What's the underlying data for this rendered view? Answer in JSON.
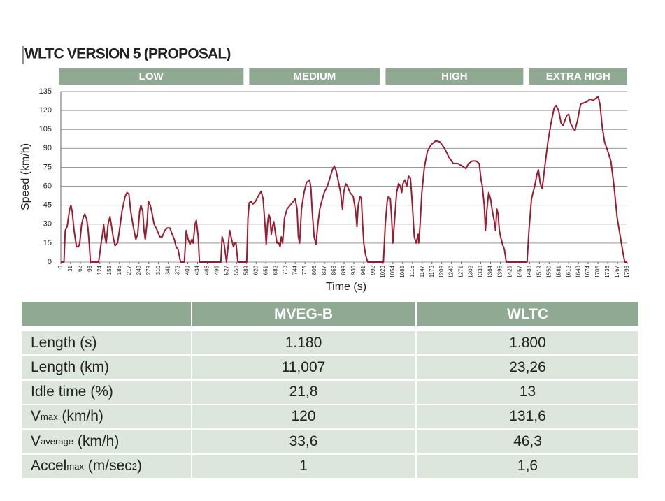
{
  "chart_data": {
    "type": "line",
    "title": "WLTC VERSION 5 (PROPOSAL)",
    "y_label": "Speed (km/h)",
    "x_label": "Time (s)",
    "phases": [
      {
        "label": "LOW",
        "start": 0,
        "end": 589
      },
      {
        "label": "MEDIUM",
        "start": 589,
        "end": 1022
      },
      {
        "label": "HIGH",
        "start": 1022,
        "end": 1477
      },
      {
        "label": "EXTRA HIGH",
        "start": 1477,
        "end": 1798
      }
    ],
    "phase_color": "#8fa993",
    "xlim": [
      0,
      1798
    ],
    "xticks": [
      0,
      31,
      62,
      93,
      124,
      155,
      186,
      217,
      248,
      279,
      310,
      341,
      372,
      403,
      434,
      465,
      496,
      527,
      558,
      589,
      620,
      651,
      682,
      713,
      744,
      775,
      806,
      837,
      868,
      899,
      930,
      961,
      992,
      1023,
      1054,
      1085,
      1116,
      1147,
      1178,
      1209,
      1240,
      1271,
      1302,
      1333,
      1364,
      1395,
      1426,
      1457,
      1488,
      1519,
      1550,
      1581,
      1612,
      1643,
      1674,
      1705,
      1736,
      1767,
      1798
    ],
    "ylim": [
      0,
      135
    ],
    "yticks": [
      0,
      15,
      30,
      45,
      60,
      75,
      90,
      105,
      120,
      135
    ],
    "grid": true,
    "x": [
      0,
      10,
      14,
      20,
      28,
      32,
      36,
      42,
      46,
      50,
      56,
      60,
      66,
      72,
      76,
      82,
      86,
      90,
      94,
      120,
      128,
      134,
      136,
      140,
      144,
      150,
      156,
      160,
      166,
      172,
      180,
      186,
      194,
      204,
      210,
      216,
      222,
      230,
      238,
      244,
      250,
      254,
      260,
      264,
      268,
      274,
      278,
      284,
      290,
      296,
      306,
      314,
      322,
      330,
      338,
      346,
      352,
      360,
      366,
      372,
      380,
      392,
      398,
      404,
      410,
      416,
      420,
      426,
      430,
      436,
      440,
      508,
      512,
      518,
      526,
      530,
      536,
      542,
      548,
      552,
      556,
      560,
      562,
      589,
      590,
      594,
      598,
      604,
      610,
      618,
      626,
      636,
      642,
      648,
      652,
      656,
      660,
      664,
      668,
      672,
      676,
      680,
      686,
      692,
      696,
      700,
      704,
      710,
      718,
      728,
      738,
      744,
      750,
      754,
      758,
      764,
      772,
      780,
      790,
      794,
      798,
      804,
      810,
      816,
      822,
      828,
      836,
      846,
      856,
      862,
      868,
      874,
      880,
      888,
      894,
      898,
      904,
      910,
      918,
      928,
      936,
      940,
      944,
      950,
      954,
      958,
      962,
      968,
      974,
      1022,
      1024,
      1030,
      1036,
      1040,
      1046,
      1050,
      1054,
      1060,
      1066,
      1072,
      1078,
      1082,
      1086,
      1092,
      1098,
      1104,
      1110,
      1116,
      1122,
      1128,
      1134,
      1136,
      1140,
      1146,
      1154,
      1164,
      1176,
      1190,
      1204,
      1218,
      1232,
      1246,
      1260,
      1274,
      1286,
      1294,
      1306,
      1318,
      1328,
      1334,
      1338,
      1344,
      1348,
      1352,
      1358,
      1364,
      1370,
      1376,
      1380,
      1384,
      1388,
      1392,
      1396,
      1402,
      1408,
      1414,
      1478,
      1480,
      1486,
      1494,
      1504,
      1512,
      1516,
      1522,
      1528,
      1536,
      1546,
      1556,
      1566,
      1572,
      1580,
      1588,
      1594,
      1600,
      1606,
      1612,
      1618,
      1626,
      1632,
      1640,
      1650,
      1660,
      1670,
      1680,
      1690,
      1700,
      1706,
      1712,
      1718,
      1726,
      1736,
      1746,
      1756,
      1766,
      1776,
      1784,
      1790,
      1798
    ],
    "series": [
      {
        "color": "#9b1c31",
        "values": [
          0,
          0,
          25,
          28,
          42,
          45,
          40,
          25,
          18,
          12,
          12,
          15,
          30,
          36,
          38,
          34,
          27,
          15,
          0,
          0,
          15,
          25,
          30,
          20,
          15,
          30,
          36,
          30,
          20,
          13,
          15,
          25,
          40,
          52,
          55,
          54,
          40,
          28,
          18,
          22,
          40,
          45,
          40,
          25,
          18,
          32,
          48,
          45,
          38,
          30,
          25,
          20,
          20,
          25,
          27,
          27,
          23,
          18,
          12,
          10,
          0,
          0,
          25,
          18,
          14,
          18,
          15,
          30,
          33,
          20,
          0,
          0,
          20,
          15,
          0,
          10,
          25,
          18,
          12,
          15,
          15,
          5,
          0,
          0,
          0,
          35,
          47,
          48,
          46,
          48,
          52,
          56,
          50,
          30,
          14,
          30,
          38,
          35,
          22,
          28,
          32,
          25,
          15,
          15,
          12,
          20,
          15,
          35,
          42,
          45,
          48,
          50,
          42,
          20,
          15,
          42,
          55,
          63,
          65,
          58,
          40,
          20,
          14,
          30,
          42,
          48,
          55,
          60,
          68,
          73,
          76,
          72,
          65,
          55,
          42,
          55,
          62,
          60,
          55,
          52,
          40,
          28,
          45,
          52,
          50,
          30,
          14,
          5,
          0,
          0,
          0,
          30,
          48,
          52,
          50,
          35,
          15,
          35,
          55,
          62,
          60,
          55,
          62,
          65,
          60,
          68,
          66,
          45,
          20,
          15,
          22,
          15,
          28,
          55,
          75,
          88,
          93,
          96,
          95,
          90,
          83,
          78,
          78,
          76,
          74,
          78,
          80,
          80,
          78,
          65,
          60,
          45,
          25,
          40,
          55,
          50,
          40,
          32,
          25,
          42,
          38,
          25,
          20,
          14,
          10,
          0,
          0,
          0,
          25,
          50,
          60,
          70,
          73,
          62,
          58,
          75,
          95,
          110,
          122,
          124,
          120,
          110,
          108,
          112,
          116,
          117,
          110,
          106,
          104,
          112,
          125,
          126,
          127,
          129,
          128,
          130,
          131,
          124,
          108,
          95,
          88,
          80,
          60,
          35,
          20,
          8,
          0,
          0
        ]
      }
    ]
  },
  "table": {
    "columns": [
      "MVEG-B",
      "WLTC"
    ],
    "rows": [
      {
        "label": [
          {
            "text": "Length (s)"
          }
        ],
        "cells": [
          "1.180",
          "1.800"
        ]
      },
      {
        "label": [
          {
            "text": "Length (km)"
          }
        ],
        "cells": [
          "11,007",
          "23,26"
        ]
      },
      {
        "label": [
          {
            "text": "Idle time (%)"
          }
        ],
        "cells": [
          "21,8",
          "13"
        ]
      },
      {
        "label": [
          {
            "text": "V"
          },
          {
            "text": "max",
            "pos": "sub"
          },
          {
            "text": " (km/h)"
          }
        ],
        "cells": [
          "120",
          "131,6"
        ]
      },
      {
        "label": [
          {
            "text": "V"
          },
          {
            "text": "average",
            "pos": "sub"
          },
          {
            "text": " (km/h)"
          }
        ],
        "cells": [
          "33,6",
          "46,3"
        ]
      },
      {
        "label": [
          {
            "text": "Accel"
          },
          {
            "text": "max",
            "pos": "sub"
          },
          {
            "text": " (m/sec"
          },
          {
            "text": "2",
            "pos": "sup"
          },
          {
            "text": ")"
          }
        ],
        "cells": [
          "1",
          "1,6"
        ]
      }
    ]
  }
}
